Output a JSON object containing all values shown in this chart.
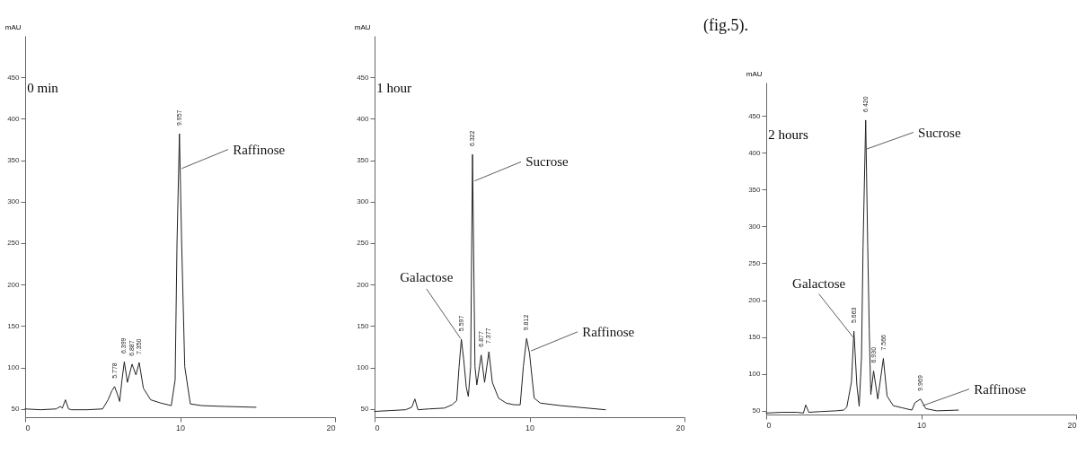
{
  "chart_data": [
    {
      "type": "line",
      "title": "0 min",
      "ylabel": "mAU",
      "xlim": [
        0,
        20
      ],
      "ylim": [
        40,
        500
      ],
      "xticks": [
        0,
        10,
        20
      ],
      "yticks": [
        50,
        100,
        150,
        200,
        250,
        300,
        350,
        400,
        450
      ],
      "grid": false,
      "series": [
        {
          "color": "#222222",
          "x": [
            0,
            1,
            2,
            2.26,
            2.4,
            2.6,
            2.8,
            3,
            4,
            5,
            5.35,
            5.6,
            5.77,
            5.95,
            6.1,
            6.25,
            6.4,
            6.6,
            6.9,
            7.15,
            7.36,
            7.63,
            8.1,
            8.77,
            9.43,
            9.68,
            9.8,
            9.957,
            10.1,
            10.3,
            10.66,
            11.4,
            12.9,
            14.9
          ],
          "values": [
            50,
            49,
            50,
            53,
            51,
            61,
            50,
            49,
            49,
            50,
            61,
            72,
            77,
            68,
            59,
            85,
            107,
            82,
            104,
            91,
            106,
            75,
            61,
            57,
            54,
            85,
            250,
            382,
            250,
            101,
            56,
            54,
            53,
            52
          ]
        }
      ],
      "annotations": [
        {
          "text": "Raffinose",
          "x": 10.1,
          "y": 340
        },
        {
          "text": "5.778",
          "x": 5.778,
          "y": 77
        },
        {
          "text": "6.399",
          "x": 6.399,
          "y": 107
        },
        {
          "text": "6.887",
          "x": 6.887,
          "y": 104
        },
        {
          "text": "7.350",
          "x": 7.35,
          "y": 106
        },
        {
          "text": "9.957",
          "x": 9.957,
          "y": 382
        }
      ]
    },
    {
      "type": "line",
      "title": "1 hour",
      "ylabel": "mAU",
      "xlim": [
        0,
        20
      ],
      "ylim": [
        40,
        500
      ],
      "xticks": [
        0,
        10,
        20
      ],
      "yticks": [
        50,
        100,
        150,
        200,
        250,
        300,
        350,
        400,
        450
      ],
      "grid": false,
      "series": [
        {
          "color": "#222222",
          "x": [
            0,
            1,
            2,
            2.4,
            2.6,
            2.8,
            3.5,
            4.5,
            5,
            5.3,
            5.45,
            5.6,
            5.75,
            5.92,
            6.05,
            6.2,
            6.32,
            6.48,
            6.6,
            6.88,
            7.1,
            7.38,
            7.6,
            8,
            8.5,
            9,
            9.4,
            9.6,
            9.81,
            10,
            10.3,
            10.7,
            12,
            14.9
          ],
          "values": [
            47,
            48,
            49,
            52,
            62,
            49,
            50,
            51,
            55,
            60,
            100,
            134,
            110,
            76,
            65,
            101,
            357,
            101,
            79,
            115,
            82,
            119,
            82,
            63,
            57,
            55,
            55,
            101,
            135,
            117,
            63,
            57,
            54,
            49
          ]
        }
      ],
      "annotations": [
        {
          "text": "Sucrose",
          "x": 6.45,
          "y": 325
        },
        {
          "text": "Galactose",
          "x": 5.55,
          "y": 135
        },
        {
          "text": "Raffinose",
          "x": 10.1,
          "y": 120
        },
        {
          "text": "5.597",
          "x": 5.597,
          "y": 134
        },
        {
          "text": "6.322",
          "x": 6.322,
          "y": 357
        },
        {
          "text": "6.877",
          "x": 6.877,
          "y": 115
        },
        {
          "text": "7.377",
          "x": 7.377,
          "y": 119
        },
        {
          "text": "9.812",
          "x": 9.812,
          "y": 135
        }
      ]
    },
    {
      "type": "line",
      "title": "2 hours",
      "ylabel": "mAU",
      "xlim": [
        0,
        20
      ],
      "ylim": [
        45,
        495
      ],
      "xticks": [
        0,
        10,
        20
      ],
      "yticks": [
        50,
        100,
        150,
        200,
        250,
        300,
        350,
        400,
        450
      ],
      "grid": false,
      "series": [
        {
          "color": "#222222",
          "x": [
            0,
            1,
            2,
            2.4,
            2.55,
            2.75,
            3.5,
            4.5,
            5,
            5.2,
            5.5,
            5.66,
            5.85,
            6,
            6.15,
            6.25,
            6.42,
            6.55,
            6.65,
            6.75,
            6.93,
            7.2,
            7.56,
            7.8,
            8.2,
            8.8,
            9.4,
            9.6,
            9.96,
            10.3,
            11,
            12.4
          ],
          "values": [
            47,
            48,
            48,
            47,
            58,
            48,
            49,
            50,
            51,
            55,
            89,
            158,
            85,
            56,
            123,
            273,
            444,
            273,
            160,
            72,
            104,
            66,
            121,
            70,
            57,
            54,
            51,
            61,
            66,
            53,
            50,
            51
          ]
        }
      ],
      "annotations": [
        "(fig.5).",
        {
          "text": "Sucrose",
          "x": 6.5,
          "y": 405
        },
        {
          "text": "Galactose",
          "x": 5.6,
          "y": 150
        },
        {
          "text": "Raffinose",
          "x": 10.1,
          "y": 57
        },
        {
          "text": "5.663",
          "x": 5.663,
          "y": 158
        },
        {
          "text": "6.420",
          "x": 6.42,
          "y": 444
        },
        {
          "text": "6.930",
          "x": 6.93,
          "y": 104
        },
        {
          "text": "7.566",
          "x": 7.566,
          "y": 121
        },
        {
          "text": "9.969",
          "x": 9.969,
          "y": 66
        }
      ]
    }
  ]
}
